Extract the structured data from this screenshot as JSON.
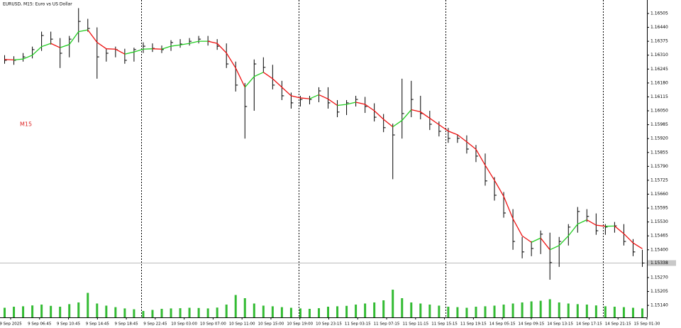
{
  "chart_data": {
    "type": "ohlc",
    "title": "EURUSD, M15:  Euro vs US Dollar",
    "annotation": "M15",
    "bar_color": "#000000",
    "ma_up_color": "#22cc22",
    "ma_down_color": "#ee1111",
    "volume_color": "#33bb33",
    "bid": 1.15338,
    "ylim": [
      1.15084,
      1.16568
    ],
    "yticks": [
      {
        "value": 1.16505,
        "label": "1.16505"
      },
      {
        "value": 1.1644,
        "label": "1.16440"
      },
      {
        "value": 1.16375,
        "label": "1.16375"
      },
      {
        "value": 1.1631,
        "label": "1.16310"
      },
      {
        "value": 1.16245,
        "label": "1.16245"
      },
      {
        "value": 1.1618,
        "label": "1.16180"
      },
      {
        "value": 1.16115,
        "label": "1.16115"
      },
      {
        "value": 1.1605,
        "label": "1.16050"
      },
      {
        "value": 1.15985,
        "label": "1.15985"
      },
      {
        "value": 1.1592,
        "label": "1.15920"
      },
      {
        "value": 1.15855,
        "label": "1.15855"
      },
      {
        "value": 1.1579,
        "label": "1.15790"
      },
      {
        "value": 1.15725,
        "label": "1.15725"
      },
      {
        "value": 1.1566,
        "label": "1.15660"
      },
      {
        "value": 1.15595,
        "label": "1.15595"
      },
      {
        "value": 1.1553,
        "label": "1.15530"
      },
      {
        "value": 1.15465,
        "label": "1.15465"
      },
      {
        "value": 1.154,
        "label": "1.15400"
      },
      {
        "value": 1.15335,
        "label": "1.15335"
      },
      {
        "value": 1.1527,
        "label": "1.15270"
      },
      {
        "value": 1.15205,
        "label": "1.15205"
      },
      {
        "value": 1.1514,
        "label": "1.15140"
      }
    ],
    "xlabels": [
      "9 Sep 2025",
      "9 Sep 06:45",
      "9 Sep 10:45",
      "9 Sep 14:45",
      "9 Sep 18:45",
      "9 Sep 22:45",
      "10 Sep 03:00",
      "10 Sep 07:00",
      "10 Sep 11:00",
      "10 Sep 15:00",
      "10 Sep 19:00",
      "10 Sep 23:15",
      "11 Sep 03:15",
      "11 Sep 07:15",
      "11 Sep 11:15",
      "11 Sep 15:15",
      "11 Sep 19:15",
      "14 Sep 05:15",
      "14 Sep 09:15",
      "14 Sep 13:15",
      "14 Sep 17:15",
      "14 Sep 21:15",
      "15 Sep 01:30"
    ],
    "high": [
      1.1631,
      1.16305,
      1.1632,
      1.1635,
      1.1642,
      1.1642,
      1.1639,
      1.164,
      1.1653,
      1.1648,
      1.1644,
      1.1634,
      1.1635,
      1.1634,
      1.16345,
      1.1637,
      1.16365,
      1.16355,
      1.1638,
      1.16385,
      1.1639,
      1.164,
      1.164,
      1.16385,
      1.16365,
      1.1628,
      1.1618,
      1.1629,
      1.163,
      1.16265,
      1.1619,
      1.16135,
      1.1612,
      1.1612,
      1.1616,
      1.1616,
      1.161,
      1.161,
      1.1612,
      1.16115,
      1.16085,
      1.16035,
      1.1599,
      1.162,
      1.1619,
      1.1612,
      1.1605,
      1.16,
      1.1597,
      1.1594,
      1.15935,
      1.1589,
      1.1585,
      1.1574,
      1.1567,
      1.1559,
      1.1546,
      1.1544,
      1.1549,
      1.1548,
      1.1546,
      1.1552,
      1.156,
      1.1559,
      1.1557,
      1.1552,
      1.1553,
      1.1552,
      1.1545,
      1.154
    ],
    "low": [
      1.1627,
      1.16265,
      1.1628,
      1.16295,
      1.1633,
      1.1636,
      1.1625,
      1.163,
      1.1637,
      1.1642,
      1.162,
      1.1628,
      1.163,
      1.1627,
      1.1628,
      1.1632,
      1.16325,
      1.1632,
      1.1633,
      1.16345,
      1.16355,
      1.16365,
      1.16355,
      1.16335,
      1.1625,
      1.1614,
      1.1592,
      1.1605,
      1.1623,
      1.1615,
      1.161,
      1.1606,
      1.1607,
      1.1608,
      1.1609,
      1.1606,
      1.1602,
      1.1603,
      1.1607,
      1.1604,
      1.16,
      1.1595,
      1.1573,
      1.1592,
      1.1602,
      1.1601,
      1.1596,
      1.1593,
      1.159,
      1.159,
      1.1585,
      1.1581,
      1.157,
      1.1563,
      1.1555,
      1.154,
      1.1536,
      1.1537,
      1.1538,
      1.1526,
      1.1532,
      1.1542,
      1.1548,
      1.1553,
      1.1547,
      1.1547,
      1.1548,
      1.1542,
      1.1537,
      1.1532
    ],
    "close": [
      1.16286,
      1.16286,
      1.16302,
      1.16336,
      1.16402,
      1.16385,
      1.16319,
      1.16385,
      1.16468,
      1.16435,
      1.16302,
      1.16319,
      1.16336,
      1.16286,
      1.16336,
      1.16352,
      1.16342,
      1.16336,
      1.16369,
      1.16362,
      1.16375,
      1.16385,
      1.16375,
      1.16352,
      1.16269,
      1.1617,
      1.1607,
      1.16269,
      1.16253,
      1.1617,
      1.1612,
      1.16087,
      1.16103,
      1.16103,
      1.16143,
      1.16087,
      1.16044,
      1.16087,
      1.16103,
      1.1607,
      1.1602,
      1.15971,
      1.15937,
      1.16037,
      1.16103,
      1.16037,
      1.15987,
      1.15954,
      1.15921,
      1.15921,
      1.15871,
      1.15838,
      1.15722,
      1.15655,
      1.15572,
      1.15439,
      1.1539,
      1.15406,
      1.15473,
      1.1534,
      1.15439,
      1.15506,
      1.15579,
      1.15556,
      1.15489,
      1.15506,
      1.15512,
      1.15439,
      1.1539,
      1.15338
    ],
    "ma": [
      1.1629,
      1.16288,
      1.16292,
      1.1631,
      1.1635,
      1.16365,
      1.16345,
      1.1636,
      1.1642,
      1.16428,
      1.1637,
      1.1634,
      1.16338,
      1.16315,
      1.16325,
      1.16338,
      1.1634,
      1.16338,
      1.16352,
      1.16358,
      1.16365,
      1.16375,
      1.16375,
      1.16365,
      1.1632,
      1.1625,
      1.1616,
      1.1621,
      1.1623,
      1.162,
      1.1616,
      1.1612,
      1.1611,
      1.16106,
      1.16125,
      1.16105,
      1.16075,
      1.1608,
      1.1609,
      1.1608,
      1.1605,
      1.1601,
      1.15975,
      1.16005,
      1.16055,
      1.16045,
      1.16015,
      1.15985,
      1.15955,
      1.15938,
      1.15905,
      1.1587,
      1.15795,
      1.15725,
      1.1565,
      1.15545,
      1.15465,
      1.15435,
      1.15455,
      1.154,
      1.1542,
      1.15465,
      1.1552,
      1.1554,
      1.15515,
      1.1551,
      1.15511,
      1.15475,
      1.15432,
      1.15405
    ],
    "volume_ylim": [
      0,
      1400
    ],
    "volume": [
      450,
      500,
      520,
      560,
      600,
      540,
      500,
      620,
      700,
      1150,
      650,
      550,
      480,
      420,
      380,
      300,
      350,
      400,
      420,
      430,
      450,
      440,
      420,
      460,
      600,
      1050,
      900,
      650,
      550,
      520,
      480,
      450,
      420,
      400,
      430,
      500,
      520,
      540,
      600,
      650,
      700,
      800,
      1300,
      900,
      700,
      650,
      600,
      550,
      500,
      480,
      450,
      500,
      520,
      550,
      600,
      650,
      700,
      750,
      780,
      850,
      700,
      650,
      620,
      600,
      560,
      520,
      500,
      480,
      450,
      420
    ]
  }
}
